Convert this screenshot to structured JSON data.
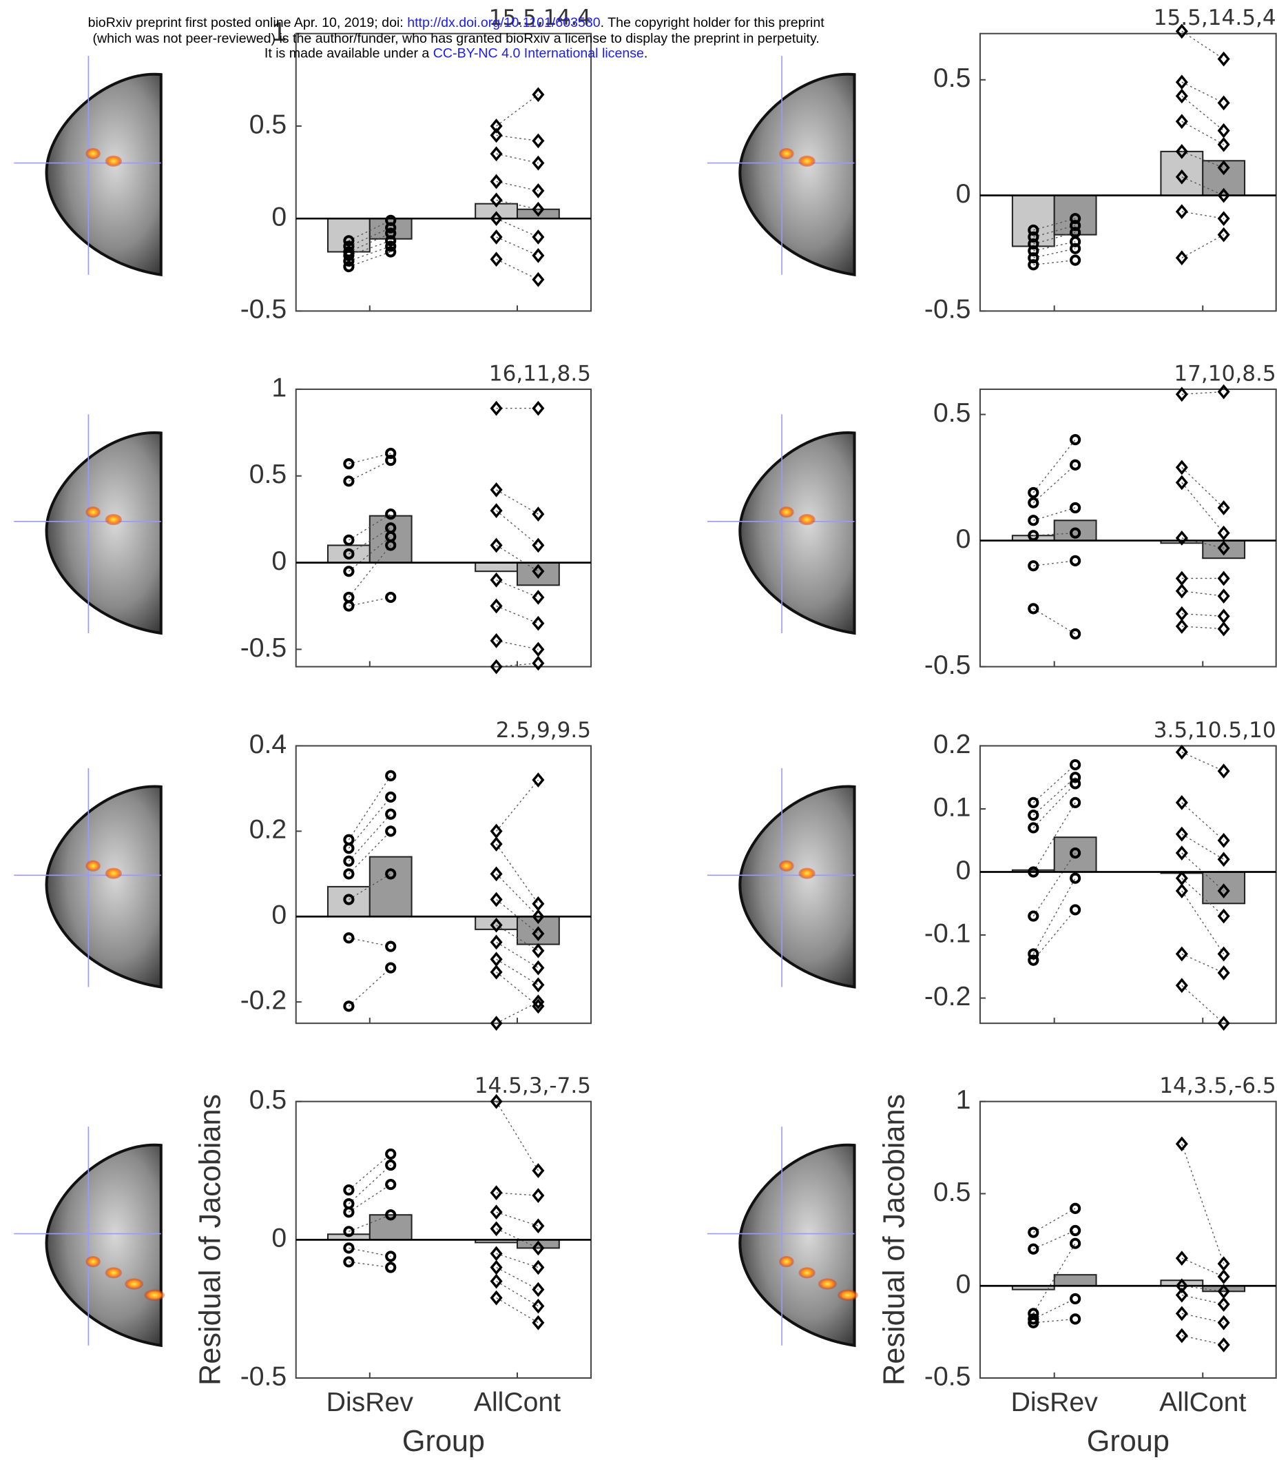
{
  "header": {
    "line1": [
      "bioRxiv preprint first posted online Apr. 10, 2019; doi: ",
      "http://dx.doi.org/10.1101/603530",
      ". The copyright holder for this preprint"
    ],
    "line2": "(which was not peer-reviewed) is the author/funder, who has granted bioRxiv a license to display the preprint in perpetuity.",
    "line3": [
      "It is made available under a ",
      "CC-BY-NC 4.0 International license",
      "."
    ]
  },
  "chart_data": [
    {
      "type": "bar",
      "title": "15.5,14.4",
      "categories": [
        null,
        null
      ],
      "markers": [
        "circle",
        "diamond"
      ],
      "series": [
        {
          "color": "#c8c8c8",
          "values": [
            -0.18,
            0.08
          ]
        },
        {
          "color": "#9a9a9a",
          "values": [
            -0.11,
            0.05
          ]
        }
      ],
      "points": [
        [
          [
            -0.12,
            -0.15,
            -0.18,
            -0.2,
            -0.23,
            -0.26
          ],
          [
            -0.01,
            -0.05,
            -0.08,
            -0.12,
            -0.15,
            -0.18
          ]
        ],
        [
          [
            0.5,
            0.45,
            0.35,
            0.2,
            0.1,
            0,
            -0.1,
            -0.22
          ],
          [
            0.67,
            0.42,
            0.3,
            0.15,
            0.05,
            -0.1,
            -0.2,
            -0.33
          ]
        ]
      ],
      "ylim": [
        -0.5,
        1
      ],
      "yticks": [
        -0.5,
        0,
        0.5,
        1
      ]
    },
    {
      "type": "bar",
      "title": "15.5,14.5,4",
      "categories": [
        null,
        null
      ],
      "markers": [
        "circle",
        "diamond"
      ],
      "series": [
        {
          "color": "#c8c8c8",
          "values": [
            -0.22,
            0.19
          ]
        },
        {
          "color": "#9a9a9a",
          "values": [
            -0.17,
            0.15
          ]
        }
      ],
      "points": [
        [
          [
            -0.15,
            -0.18,
            -0.21,
            -0.24,
            -0.27,
            -0.3
          ],
          [
            -0.1,
            -0.13,
            -0.16,
            -0.2,
            -0.23,
            -0.28
          ]
        ],
        [
          [
            0.71,
            0.49,
            0.43,
            0.32,
            0.19,
            0.08,
            -0.07,
            -0.27
          ],
          [
            0.59,
            0.4,
            0.28,
            0.22,
            0.12,
            0,
            -0.1,
            -0.17
          ]
        ]
      ],
      "ylim": [
        -0.5,
        0.7
      ],
      "yticks": [
        -0.5,
        0,
        0.5
      ]
    },
    {
      "type": "bar",
      "title": "16,11,8.5",
      "categories": [
        null,
        null
      ],
      "markers": [
        "circle",
        "diamond"
      ],
      "series": [
        {
          "color": "#c8c8c8",
          "values": [
            0.1,
            -0.05
          ]
        },
        {
          "color": "#9a9a9a",
          "values": [
            0.27,
            -0.13
          ]
        }
      ],
      "points": [
        [
          [
            0.57,
            0.47,
            0.13,
            0.05,
            -0.05,
            -0.2,
            -0.25
          ],
          [
            0.63,
            0.59,
            0.28,
            0.2,
            0.15,
            0.1,
            -0.2
          ]
        ],
        [
          [
            0.89,
            0.42,
            0.3,
            0.1,
            -0.1,
            -0.25,
            -0.45,
            -0.6
          ],
          [
            0.89,
            0.28,
            0.1,
            -0.05,
            -0.2,
            -0.35,
            -0.5,
            -0.58
          ]
        ]
      ],
      "ylim": [
        -0.6,
        1
      ],
      "yticks": [
        -0.5,
        0,
        0.5,
        1
      ]
    },
    {
      "type": "bar",
      "title": "17,10,8.5",
      "categories": [
        null,
        null
      ],
      "markers": [
        "circle",
        "diamond"
      ],
      "series": [
        {
          "color": "#c8c8c8",
          "values": [
            0.02,
            -0.01
          ]
        },
        {
          "color": "#9a9a9a",
          "values": [
            0.08,
            -0.07
          ]
        }
      ],
      "points": [
        [
          [
            0.19,
            0.15,
            0.08,
            0.02,
            -0.1,
            -0.27
          ],
          [
            0.4,
            0.3,
            0.13,
            0.03,
            -0.08,
            -0.37
          ]
        ],
        [
          [
            0.58,
            0.29,
            0.23,
            0.01,
            -0.15,
            -0.2,
            -0.29,
            -0.34
          ],
          [
            0.59,
            0.13,
            0.03,
            -0.03,
            -0.15,
            -0.22,
            -0.3,
            -0.35
          ]
        ]
      ],
      "ylim": [
        -0.5,
        0.6
      ],
      "yticks": [
        -0.5,
        0,
        0.5
      ]
    },
    {
      "type": "bar",
      "title": "2.5,9,9.5",
      "categories": [
        null,
        null
      ],
      "markers": [
        "circle",
        "diamond"
      ],
      "series": [
        {
          "color": "#c8c8c8",
          "values": [
            0.07,
            -0.03
          ]
        },
        {
          "color": "#9a9a9a",
          "values": [
            0.14,
            -0.065
          ]
        }
      ],
      "points": [
        [
          [
            0.18,
            0.16,
            0.13,
            0.1,
            0.04,
            -0.05,
            -0.21
          ],
          [
            0.33,
            0.28,
            0.24,
            0.2,
            0.1,
            -0.07,
            -0.12
          ]
        ],
        [
          [
            0.2,
            0.17,
            0.1,
            0.04,
            -0.02,
            -0.06,
            -0.1,
            -0.13,
            -0.25
          ],
          [
            0.32,
            0.03,
            0,
            -0.04,
            -0.08,
            -0.12,
            -0.16,
            -0.21,
            -0.2
          ]
        ]
      ],
      "ylim": [
        -0.25,
        0.4
      ],
      "yticks": [
        -0.2,
        0,
        0.2,
        0.4
      ]
    },
    {
      "type": "bar",
      "title": "3.5,10.5,10",
      "categories": [
        null,
        null
      ],
      "markers": [
        "circle",
        "diamond"
      ],
      "series": [
        {
          "color": "#c8c8c8",
          "values": [
            0.003,
            -0.002
          ]
        },
        {
          "color": "#9a9a9a",
          "values": [
            0.055,
            -0.05
          ]
        }
      ],
      "points": [
        [
          [
            0.11,
            0.09,
            0.07,
            0,
            -0.07,
            -0.13,
            -0.14
          ],
          [
            0.17,
            0.15,
            0.14,
            0.11,
            0.03,
            -0.01,
            -0.06
          ]
        ],
        [
          [
            0.19,
            0.11,
            0.06,
            0.03,
            -0.01,
            -0.03,
            -0.13,
            -0.18
          ],
          [
            0.16,
            0.05,
            0.02,
            -0.03,
            -0.07,
            -0.13,
            -0.16,
            -0.24
          ]
        ]
      ],
      "ylim": [
        -0.24,
        0.2
      ],
      "yticks": [
        -0.2,
        -0.1,
        0,
        0.1,
        0.2
      ]
    },
    {
      "type": "bar",
      "title": "14.5,3,-7.5",
      "categories": [
        "DisRev",
        "AllCont"
      ],
      "xlabel": "Group",
      "ylabel": "Residual of Jacobians",
      "markers": [
        "circle",
        "diamond"
      ],
      "series": [
        {
          "color": "#c8c8c8",
          "values": [
            0.02,
            -0.01
          ]
        },
        {
          "color": "#9a9a9a",
          "values": [
            0.09,
            -0.03
          ]
        }
      ],
      "points": [
        [
          [
            0.18,
            0.13,
            0.1,
            0.03,
            -0.03,
            -0.08
          ],
          [
            0.31,
            0.27,
            0.2,
            0.09,
            -0.06,
            -0.1
          ]
        ],
        [
          [
            0.5,
            0.17,
            0.1,
            0.04,
            -0.05,
            -0.1,
            -0.15,
            -0.21
          ],
          [
            0.25,
            0.16,
            0.05,
            -0.03,
            -0.1,
            -0.18,
            -0.24,
            -0.3
          ]
        ]
      ],
      "ylim": [
        -0.5,
        0.5
      ],
      "yticks": [
        -0.5,
        0,
        0.5
      ]
    },
    {
      "type": "bar",
      "title": "14,3.5,-6.5",
      "categories": [
        "DisRev",
        "AllCont"
      ],
      "xlabel": "Group",
      "ylabel": "Residual of Jacobians",
      "markers": [
        "circle",
        "diamond"
      ],
      "series": [
        {
          "color": "#c8c8c8",
          "values": [
            -0.02,
            0.03
          ]
        },
        {
          "color": "#9a9a9a",
          "values": [
            0.06,
            -0.03
          ]
        }
      ],
      "points": [
        [
          [
            0.29,
            0.2,
            -0.15,
            -0.18,
            -0.2
          ],
          [
            0.42,
            0.3,
            0.23,
            -0.07,
            -0.18
          ]
        ],
        [
          [
            0.77,
            0.15,
            0,
            -0.05,
            -0.15,
            -0.27
          ],
          [
            0.12,
            0.05,
            -0.03,
            -0.1,
            -0.2,
            -0.32
          ]
        ]
      ],
      "ylim": [
        -0.5,
        1
      ],
      "yticks": [
        -0.5,
        0,
        0.5,
        1
      ]
    }
  ]
}
